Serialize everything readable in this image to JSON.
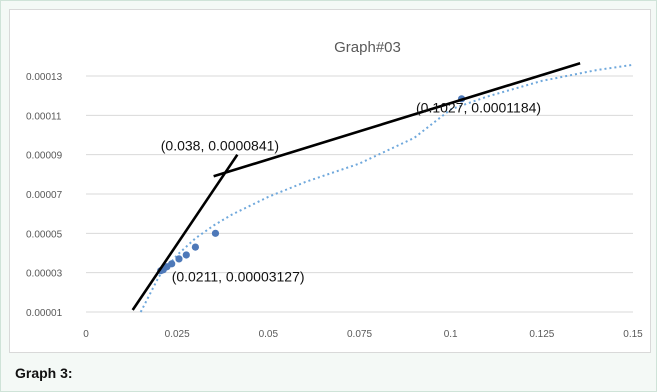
{
  "chart_data": {
    "type": "scatter",
    "title": "Graph#03",
    "xlabel": "",
    "ylabel": "",
    "xlim": [
      0,
      0.15
    ],
    "ylim": [
      1e-05,
      0.00013
    ],
    "x_ticks": [
      "0",
      "0.025",
      "0.05",
      "0.075",
      "0.1",
      "0.125",
      "0.15"
    ],
    "y_ticks": [
      "0.00001",
      "0.00003",
      "0.00005",
      "0.00007",
      "0.00009",
      "0.00011",
      "0.00013"
    ],
    "grid": "horizontal",
    "legend": "none",
    "series": [
      {
        "points": [
          {
            "x": 0.0205,
            "y": 3.1e-05
          },
          {
            "x": 0.0212,
            "y": 3.15e-05
          },
          {
            "x": 0.0222,
            "y": 3.3e-05
          },
          {
            "x": 0.0235,
            "y": 3.45e-05
          },
          {
            "x": 0.0255,
            "y": 3.7e-05
          },
          {
            "x": 0.0275,
            "y": 3.9e-05
          },
          {
            "x": 0.03,
            "y": 4.3e-05
          },
          {
            "x": 0.0355,
            "y": 5e-05
          },
          {
            "x": 0.103,
            "y": 0.0001184
          }
        ],
        "color": "#4e79b9"
      }
    ],
    "trendline": {
      "style": "dotted",
      "color": "#6fa8dc",
      "points": [
        {
          "x": 0.015,
          "y": 1e-05
        },
        {
          "x": 0.02,
          "y": 2.8e-05
        },
        {
          "x": 0.025,
          "y": 3.9e-05
        },
        {
          "x": 0.03,
          "y": 4.75e-05
        },
        {
          "x": 0.035,
          "y": 5.4e-05
        },
        {
          "x": 0.04,
          "y": 5.95e-05
        },
        {
          "x": 0.05,
          "y": 6.85e-05
        },
        {
          "x": 0.06,
          "y": 7.6e-05
        },
        {
          "x": 0.075,
          "y": 8.55e-05
        },
        {
          "x": 0.09,
          "y": 9.85e-05
        },
        {
          "x": 0.1,
          "y": 0.000113
        },
        {
          "x": 0.11,
          "y": 0.0001195
        },
        {
          "x": 0.125,
          "y": 0.0001275
        },
        {
          "x": 0.14,
          "y": 0.000133
        },
        {
          "x": 0.15,
          "y": 0.0001357
        }
      ]
    },
    "tangent_lines": [
      {
        "from": {
          "x": 0.0128,
          "y": 1.1e-05
        },
        "to": {
          "x": 0.0415,
          "y": 9e-05
        },
        "color": "#000000"
      },
      {
        "from": {
          "x": 0.035,
          "y": 7.9e-05
        },
        "to": {
          "x": 0.1355,
          "y": 0.0001365
        },
        "color": "#000000"
      }
    ],
    "annotations": [
      {
        "text": "(0.038, 0.0000841)",
        "x": 0.0205,
        "y": 9.2e-05
      },
      {
        "text": "(0.1027, 0.0001184)",
        "x": 0.0905,
        "y": 0.0001115
      },
      {
        "text": "(0.0211, 0.00003127)",
        "x": 0.0235,
        "y": 2.55e-05
      }
    ]
  },
  "caption": "Graph 3:"
}
